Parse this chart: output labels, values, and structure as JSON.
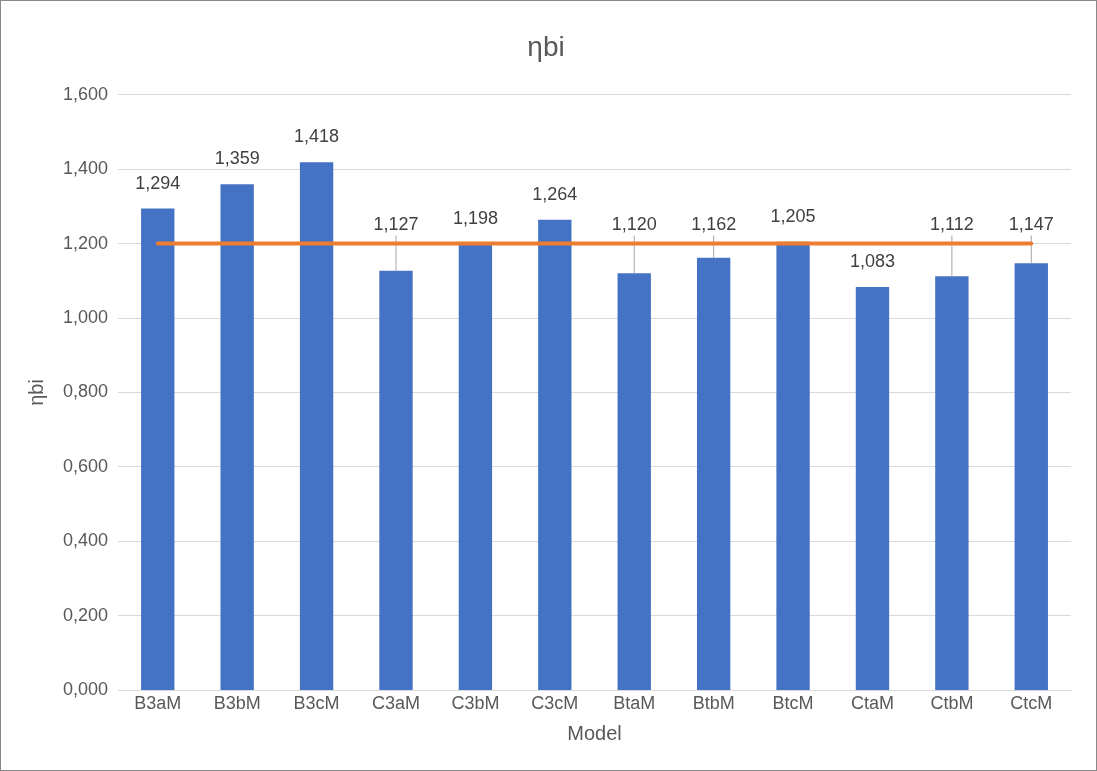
{
  "chart_data": {
    "type": "bar",
    "title": "ηbi",
    "xlabel": "Model",
    "ylabel": "ηbi",
    "categories": [
      "B3aM",
      "B3bM",
      "B3cM",
      "C3aM",
      "C3bM",
      "C3cM",
      "BtaM",
      "BtbM",
      "BtcM",
      "CtaM",
      "CtbM",
      "CtcM"
    ],
    "values": [
      1.294,
      1.359,
      1.418,
      1.127,
      1.198,
      1.264,
      1.12,
      1.162,
      1.205,
      1.083,
      1.112,
      1.147
    ],
    "value_labels": [
      "1,294",
      "1,359",
      "1,418",
      "1,127",
      "1,198",
      "1,264",
      "1,120",
      "1,162",
      "1,205",
      "1,083",
      "1,112",
      "1,147"
    ],
    "color": "#4472c4",
    "ylim": [
      0,
      1.6
    ],
    "yticks": [
      {
        "value": 0,
        "label": "0,000"
      },
      {
        "value": 0.2,
        "label": "0,200"
      },
      {
        "value": 0.4,
        "label": "0,400"
      },
      {
        "value": 0.6,
        "label": "0,600"
      },
      {
        "value": 0.8,
        "label": "0,800"
      },
      {
        "value": 1,
        "label": "1,000"
      },
      {
        "value": 1.2,
        "label": "1,200"
      },
      {
        "value": 1.4,
        "label": "1,400"
      },
      {
        "value": 1.6,
        "label": "1,600"
      }
    ],
    "grid": "y",
    "ref_lines": [
      {
        "axis": "y",
        "value": 1.2,
        "color": "#ed7d31"
      }
    ]
  }
}
